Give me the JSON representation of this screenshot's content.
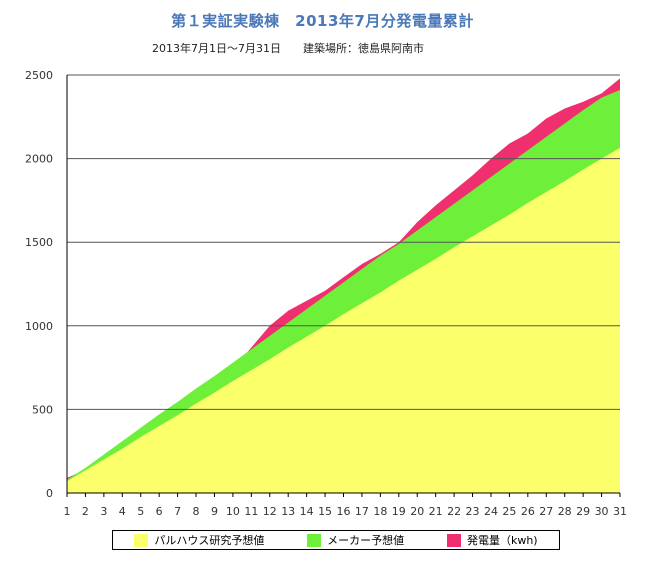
{
  "title": "第１実証実験棟　2013年7月分発電量累計",
  "subtitle": "2013年7月1日〜7月31日　　建築場所：徳島県阿南市",
  "chart_data": {
    "type": "area",
    "stacked": false,
    "x": [
      1,
      2,
      3,
      4,
      5,
      6,
      7,
      8,
      9,
      10,
      11,
      12,
      13,
      14,
      15,
      16,
      17,
      18,
      19,
      20,
      21,
      22,
      23,
      24,
      25,
      26,
      27,
      28,
      29,
      30,
      31
    ],
    "ylim": [
      0,
      2500
    ],
    "yticks": [
      0,
      500,
      1000,
      1500,
      2000,
      2500
    ],
    "grid": true,
    "legend_position": "bottom",
    "series": [
      {
        "name": "発電量（kwh)",
        "color": "#f0306e",
        "values": [
          90,
          140,
          210,
          280,
          350,
          420,
          490,
          560,
          640,
          740,
          870,
          1000,
          1090,
          1150,
          1210,
          1290,
          1370,
          1430,
          1500,
          1620,
          1720,
          1810,
          1900,
          2000,
          2090,
          2150,
          2240,
          2300,
          2340,
          2390,
          2480
        ]
      },
      {
        "name": "メーカー予想値",
        "color": "#6ef03a",
        "values": [
          80,
          150,
          230,
          310,
          390,
          470,
          545,
          625,
          700,
          780,
          860,
          940,
          1020,
          1100,
          1180,
          1260,
          1340,
          1420,
          1490,
          1570,
          1650,
          1730,
          1810,
          1890,
          1970,
          2050,
          2130,
          2210,
          2290,
          2365,
          2410
        ]
      },
      {
        "name": "パルハウス研究予想値",
        "color": "#fbff6a",
        "values": [
          70,
          135,
          200,
          265,
          335,
          400,
          465,
          535,
          600,
          670,
          735,
          800,
          870,
          935,
          1000,
          1070,
          1135,
          1200,
          1270,
          1335,
          1400,
          1470,
          1535,
          1600,
          1665,
          1735,
          1800,
          1865,
          1935,
          2000,
          2065
        ]
      }
    ]
  },
  "legend": {
    "items": [
      {
        "label": "パルハウス研究予想値",
        "color": "#fbff6a"
      },
      {
        "label": "メーカー予想値",
        "color": "#6ef03a"
      },
      {
        "label": "発電量（kwh)",
        "color": "#f0306e"
      }
    ]
  }
}
